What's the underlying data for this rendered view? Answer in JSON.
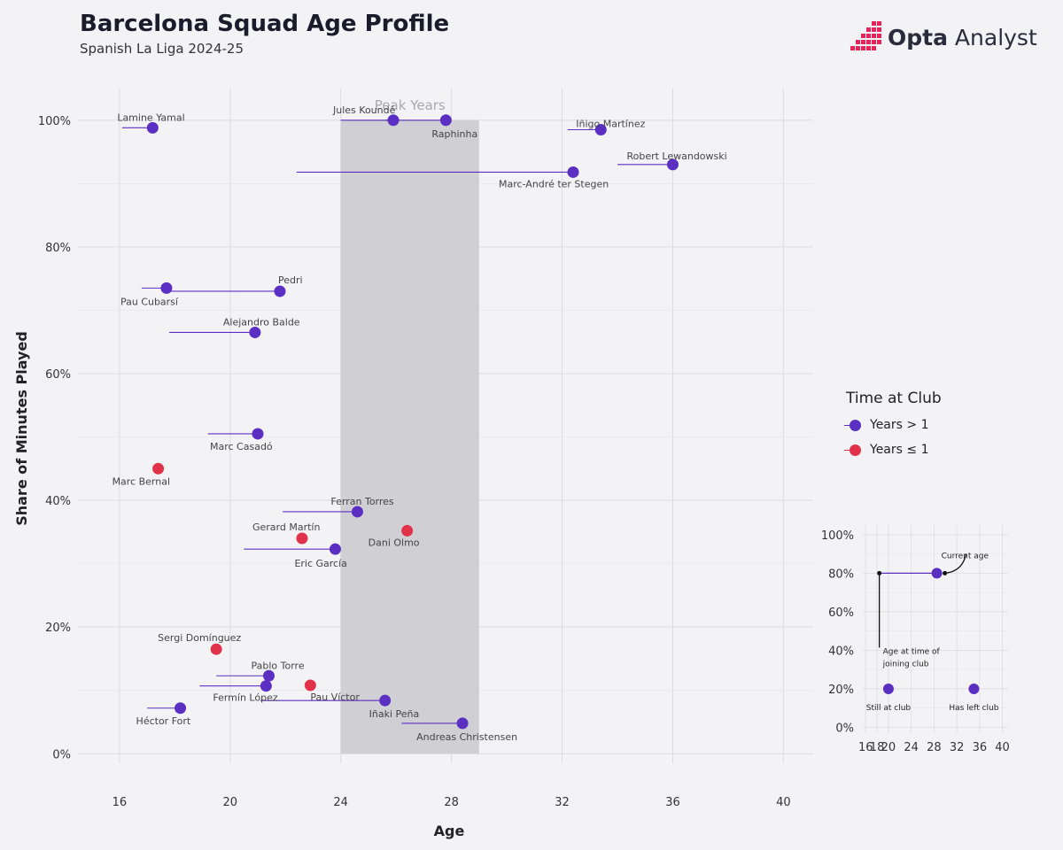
{
  "header": {
    "title": "Barcelona Squad Age Profile",
    "subtitle": "Spanish La Liga 2024-25"
  },
  "brand": {
    "name_bold": "Opta",
    "name_light": "Analyst",
    "logo_icon": "opta-dots-logo",
    "logo_color": "#e8235a"
  },
  "colors": {
    "years_gt_1": "#5b2fc2",
    "years_le_1": "#e0334a",
    "peak_band": "#cfcfd4",
    "grid": "#dcdce2"
  },
  "legend": {
    "title": "Time at Club",
    "items": [
      {
        "label": "Years > 1",
        "color": "#5b2fc2"
      },
      {
        "label": "Years ≤ 1",
        "color": "#e0334a"
      }
    ]
  },
  "chart_data": [
    {
      "type": "scatter",
      "xlabel": "Age",
      "ylabel": "Share of Minutes Played",
      "xlim": [
        14.5,
        40.5
      ],
      "ylim": [
        -1.5,
        105
      ],
      "xticks": [
        16,
        20,
        24,
        28,
        32,
        36,
        40
      ],
      "yticks": [
        0,
        20,
        40,
        60,
        80,
        100
      ],
      "ytick_labels": [
        "0%",
        "20%",
        "40%",
        "60%",
        "80%",
        "100%"
      ],
      "peak_band": {
        "label": "Peak Years",
        "x_start": 24,
        "x_end": 29
      },
      "grid": true,
      "legend_position": "right",
      "players": [
        {
          "name": "Lamine Yamal",
          "age": 17.2,
          "joined_age": 16.1,
          "share": 98.8,
          "group": "Years > 1"
        },
        {
          "name": "Jules Koundé",
          "age": 25.9,
          "joined_age": 24.0,
          "share": 100,
          "group": "Years > 1"
        },
        {
          "name": "Raphinha",
          "age": 27.8,
          "joined_age": 25.6,
          "share": 100,
          "group": "Years > 1"
        },
        {
          "name": "Iñigo Martínez",
          "age": 33.4,
          "joined_age": 32.2,
          "share": 98.5,
          "group": "Years > 1"
        },
        {
          "name": "Robert Lewandowski",
          "age": 36.0,
          "joined_age": 34.0,
          "share": 93,
          "group": "Years > 1"
        },
        {
          "name": "Marc-André ter Stegen",
          "age": 32.4,
          "joined_age": 22.4,
          "share": 91.8,
          "group": "Years > 1"
        },
        {
          "name": "Pau Cubarsí",
          "age": 17.7,
          "joined_age": 16.8,
          "share": 73.5,
          "group": "Years > 1"
        },
        {
          "name": "Pedri",
          "age": 21.8,
          "joined_age": 17.8,
          "share": 73,
          "group": "Years > 1"
        },
        {
          "name": "Alejandro Balde",
          "age": 20.9,
          "joined_age": 17.8,
          "share": 66.5,
          "group": "Years > 1"
        },
        {
          "name": "Marc Casadó",
          "age": 21.0,
          "joined_age": 19.2,
          "share": 50.5,
          "group": "Years > 1"
        },
        {
          "name": "Marc Bernal",
          "age": 17.4,
          "joined_age": 17.4,
          "share": 45,
          "group": "Years ≤ 1"
        },
        {
          "name": "Ferran Torres",
          "age": 24.6,
          "joined_age": 21.9,
          "share": 38.2,
          "group": "Years > 1"
        },
        {
          "name": "Gerard Martín",
          "age": 22.6,
          "joined_age": 22.6,
          "share": 34,
          "group": "Years ≤ 1"
        },
        {
          "name": "Dani Olmo",
          "age": 26.4,
          "joined_age": 26.4,
          "share": 35.2,
          "group": "Years ≤ 1"
        },
        {
          "name": "Eric García",
          "age": 23.8,
          "joined_age": 20.5,
          "share": 32.3,
          "group": "Years > 1"
        },
        {
          "name": "Sergi Domínguez",
          "age": 19.5,
          "joined_age": 19.5,
          "share": 16.5,
          "group": "Years ≤ 1"
        },
        {
          "name": "Pablo Torre",
          "age": 21.4,
          "joined_age": 19.5,
          "share": 12.3,
          "group": "Years > 1"
        },
        {
          "name": "Fermín López",
          "age": 21.3,
          "joined_age": 18.9,
          "share": 10.7,
          "group": "Years > 1"
        },
        {
          "name": "Pau Víctor",
          "age": 22.9,
          "joined_age": 22.9,
          "share": 10.8,
          "group": "Years ≤ 1"
        },
        {
          "name": "Iñaki Peña",
          "age": 25.6,
          "joined_age": 21.1,
          "share": 8.4,
          "group": "Years > 1"
        },
        {
          "name": "Héctor Fort",
          "age": 18.2,
          "joined_age": 17.0,
          "share": 7.2,
          "group": "Years > 1"
        },
        {
          "name": "Andreas Christensen",
          "age": 28.4,
          "joined_age": 26.2,
          "share": 4.8,
          "group": "Years > 1"
        }
      ]
    },
    {
      "type": "scatter",
      "title": "",
      "xlim": [
        15.5,
        41
      ],
      "ylim": [
        -3,
        105
      ],
      "xticks": [
        16,
        18,
        20,
        24,
        28,
        32,
        36,
        40
      ],
      "yticks": [
        0,
        20,
        40,
        60,
        80,
        100
      ],
      "ytick_labels": [
        "0%",
        "20%",
        "40%",
        "60%",
        "80%",
        "100%"
      ],
      "grid": true,
      "points": [
        {
          "age": 28.5,
          "joined_age": 18.4,
          "share": 80,
          "group": "Years > 1"
        },
        {
          "age": 20,
          "share": 20,
          "group": "Years > 1",
          "caption": "Still at club"
        },
        {
          "age": 35,
          "share": 20,
          "group": "Years > 1",
          "caption": "Has left club"
        }
      ],
      "annotations": [
        {
          "text": "Current age"
        },
        {
          "text": "Age at time of joining club"
        }
      ]
    }
  ]
}
